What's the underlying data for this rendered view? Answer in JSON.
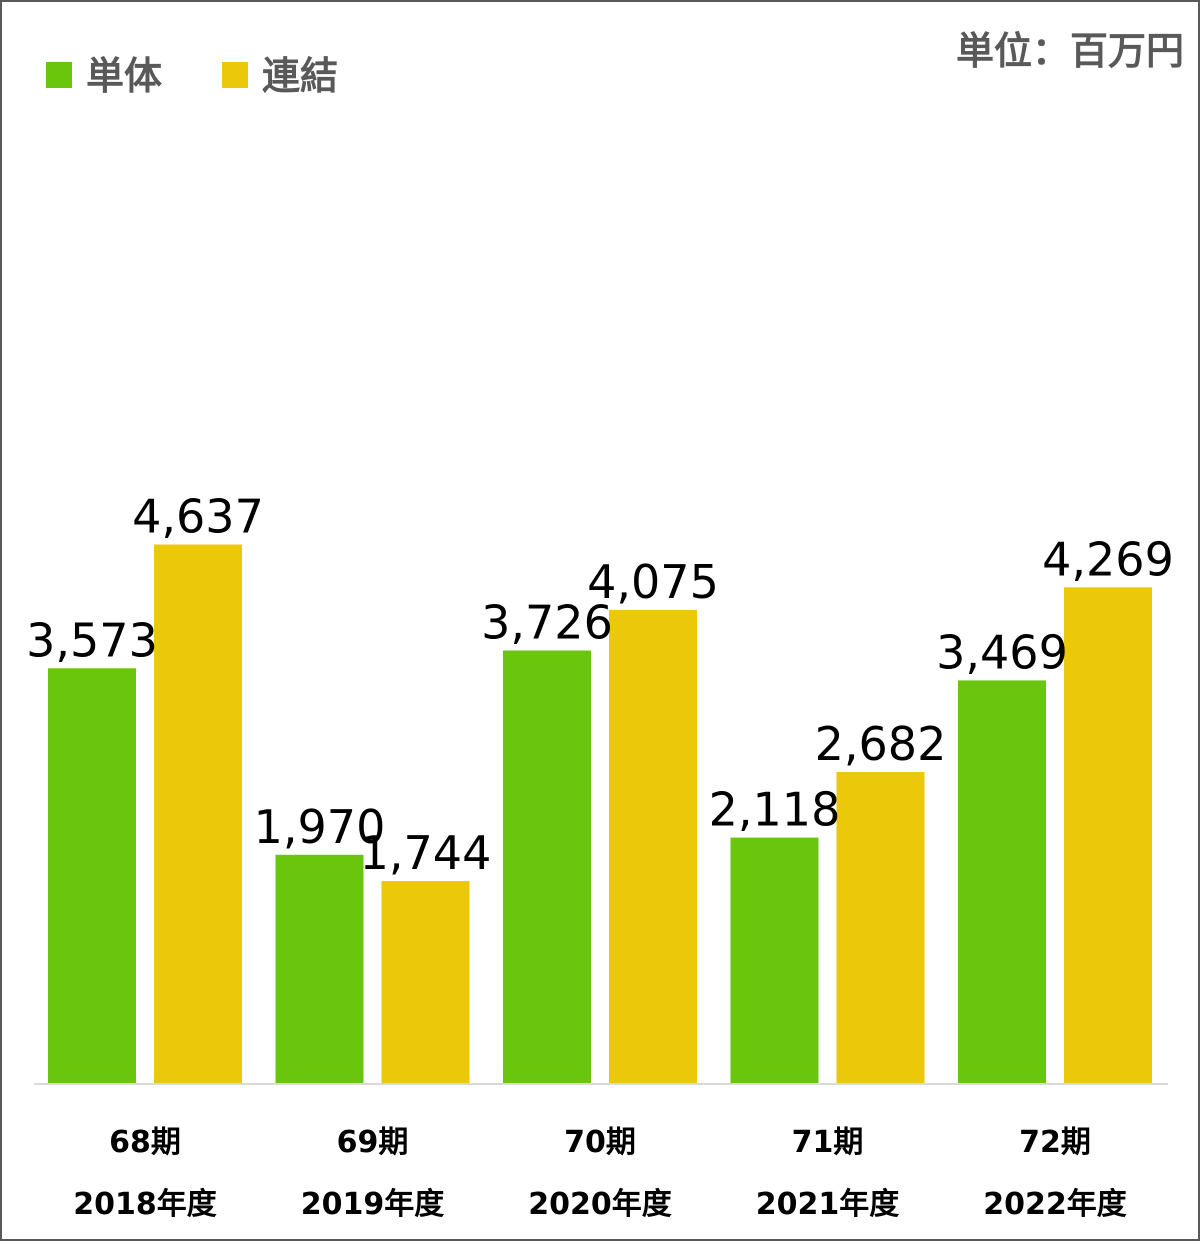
{
  "chart_data": {
    "type": "bar",
    "unit_label": "単位：百万円",
    "categories": [
      {
        "period": "68期",
        "year": "2018年度"
      },
      {
        "period": "69期",
        "year": "2019年度"
      },
      {
        "period": "70期",
        "year": "2020年度"
      },
      {
        "period": "71期",
        "year": "2021年度"
      },
      {
        "period": "72期",
        "year": "2022年度"
      }
    ],
    "series": [
      {
        "name": "単体",
        "color": "#6AC60C",
        "values": [
          3573,
          1970,
          3726,
          2118,
          3469
        ],
        "labels": [
          "3,573",
          "1,970",
          "3,726",
          "2,118",
          "3,469"
        ]
      },
      {
        "name": "連結",
        "color": "#ECC80A",
        "values": [
          4637,
          1744,
          4075,
          2682,
          4269
        ],
        "labels": [
          "4,637",
          "1,744",
          "4,075",
          "2,682",
          "4,269"
        ]
      }
    ],
    "ylim": [
      0,
      9300
    ],
    "legend_position": "top-left",
    "grid": false,
    "axis_line_color": "#D9D9D9"
  }
}
